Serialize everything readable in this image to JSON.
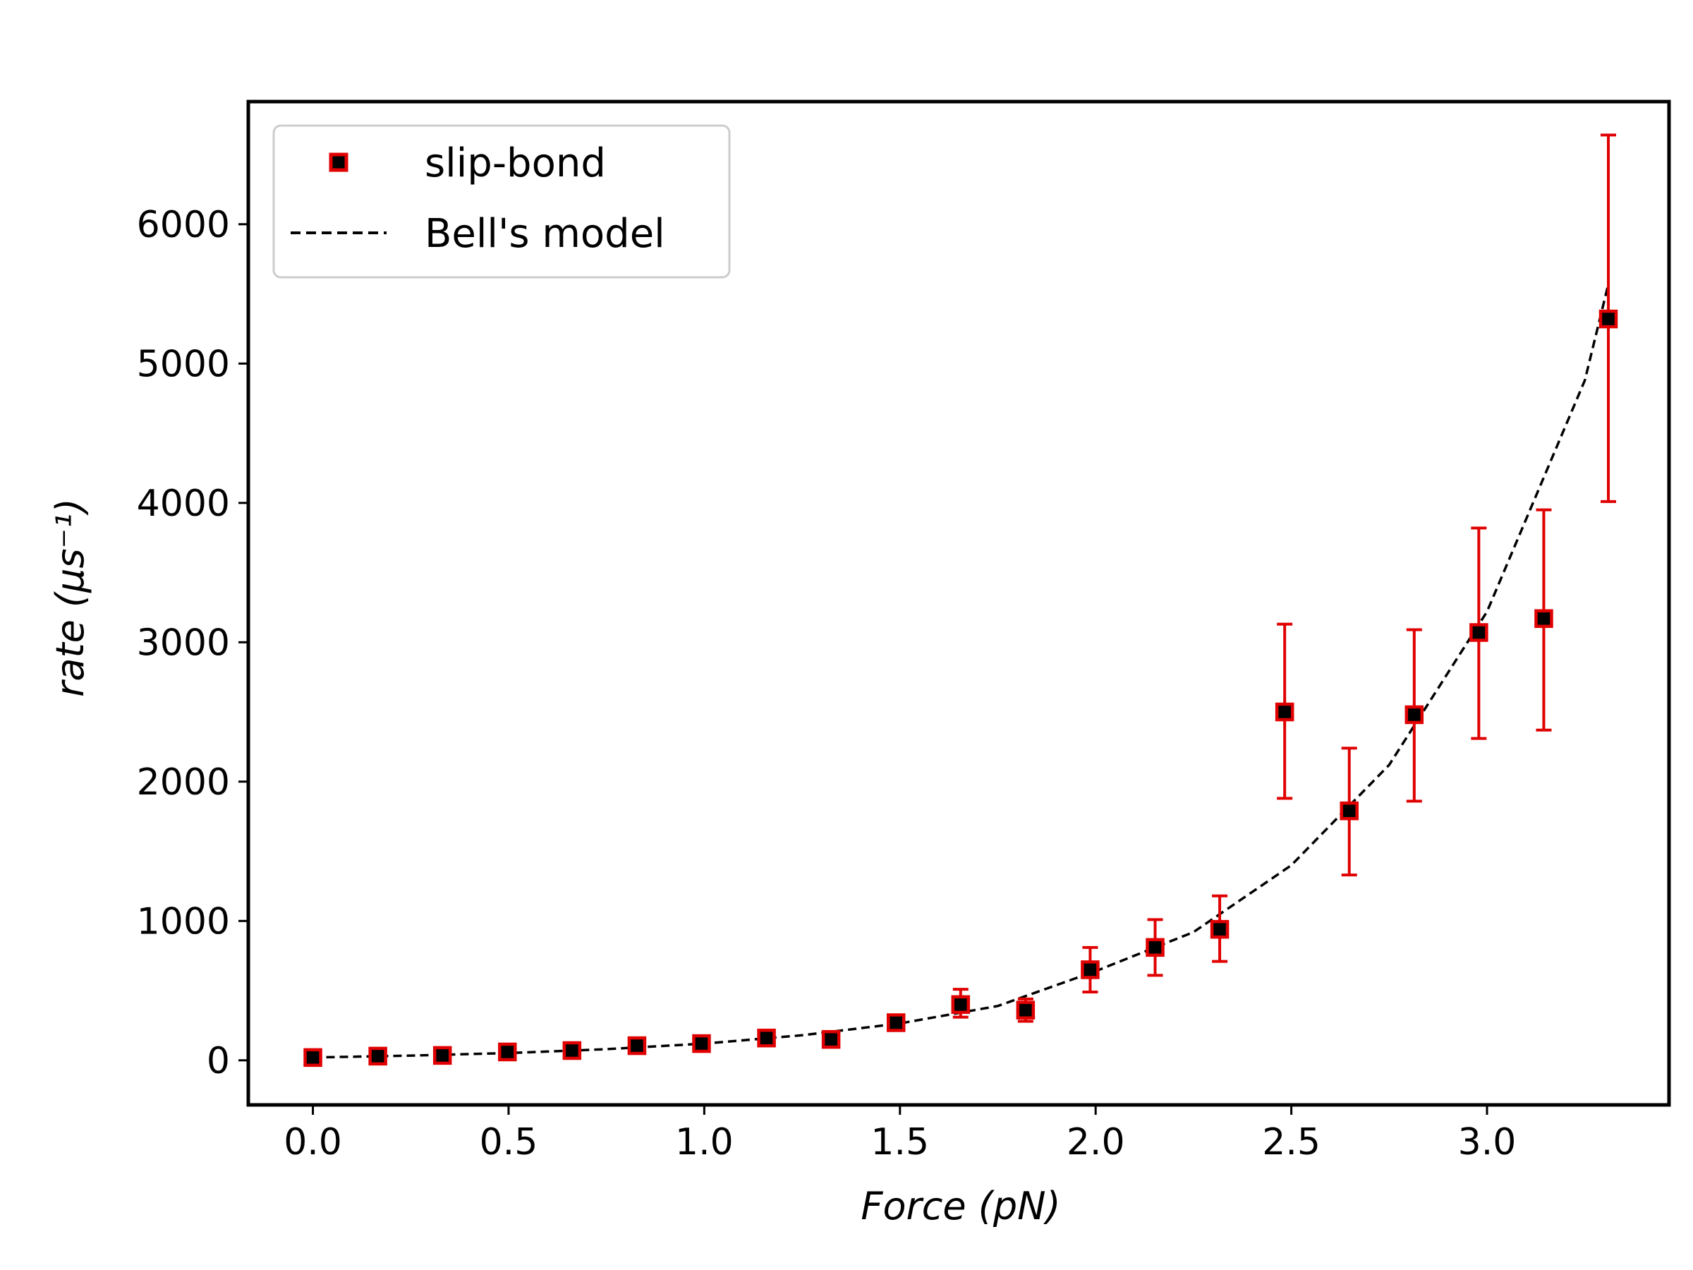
{
  "chart_data": {
    "type": "scatter",
    "xlabel": "Force (pN)",
    "ylabel": "rate (μs⁻¹)",
    "xlim": [
      -0.165,
      3.465
    ],
    "ylim": [
      -320,
      6880
    ],
    "x_ticks": [
      0.0,
      0.5,
      1.0,
      1.5,
      2.0,
      2.5,
      3.0
    ],
    "x_tick_labels": [
      "0.0",
      "0.5",
      "1.0",
      "1.5",
      "2.0",
      "2.5",
      "3.0"
    ],
    "y_ticks": [
      0,
      1000,
      2000,
      3000,
      4000,
      5000,
      6000
    ],
    "y_tick_labels": [
      "0",
      "1000",
      "2000",
      "3000",
      "4000",
      "5000",
      "6000"
    ],
    "grid": false,
    "legend": {
      "position": "top-left",
      "entries": [
        "slip-bond",
        "Bell's model"
      ]
    },
    "series": [
      {
        "name": "slip-bond",
        "style": "errorbar-markers",
        "marker_color": "#000000",
        "edge_color": "#e00000",
        "error_color": "#e00000",
        "x": [
          0.0,
          0.166,
          0.331,
          0.497,
          0.662,
          0.828,
          0.993,
          1.159,
          1.324,
          1.49,
          1.655,
          1.821,
          1.986,
          2.152,
          2.317,
          2.483,
          2.648,
          2.814,
          2.979,
          3.145,
          3.31
        ],
        "y": [
          20,
          30,
          35,
          60,
          70,
          105,
          120,
          160,
          150,
          270,
          400,
          360,
          650,
          810,
          940,
          2500,
          1790,
          2480,
          3070,
          3170,
          5320
        ],
        "err_low": [
          10,
          15,
          15,
          20,
          25,
          30,
          35,
          40,
          40,
          50,
          90,
          80,
          160,
          200,
          230,
          620,
          460,
          620,
          760,
          800,
          1310
        ],
        "err_high": [
          10,
          15,
          15,
          20,
          25,
          30,
          35,
          40,
          40,
          50,
          110,
          80,
          160,
          200,
          240,
          630,
          450,
          610,
          750,
          780,
          1320
        ]
      },
      {
        "name": "Bell's model",
        "style": "dashed-line",
        "color": "#000000",
        "x": [
          0.0,
          0.25,
          0.5,
          0.75,
          1.0,
          1.25,
          1.5,
          1.75,
          2.0,
          2.25,
          2.5,
          2.75,
          3.0,
          3.25,
          3.31
        ],
        "y": [
          20,
          34,
          52,
          80,
          120,
          180,
          265,
          390,
          640,
          920,
          1400,
          2120,
          3220,
          4880,
          5570
        ]
      }
    ]
  }
}
